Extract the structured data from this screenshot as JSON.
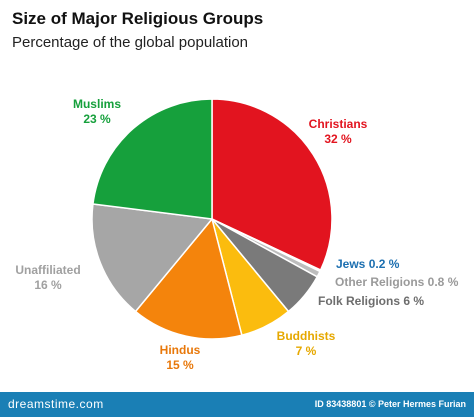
{
  "chart_data": {
    "type": "pie",
    "title": "Size of Major Religious Groups",
    "subtitle": "Percentage of the global population",
    "slices": [
      {
        "name": "Christians",
        "value": 32,
        "label": "32 %",
        "color": "#e2141f"
      },
      {
        "name": "Jews",
        "value": 0.2,
        "label": "0.2 %",
        "color": "#1c6fb0"
      },
      {
        "name": "Other Religions",
        "value": 0.8,
        "label": "0.8 %",
        "color": "#bdbdbd"
      },
      {
        "name": "Folk Religions",
        "value": 6,
        "label": "6 %",
        "color": "#7a7a7a"
      },
      {
        "name": "Buddhists",
        "value": 7,
        "label": "7 %",
        "color": "#fbbc0e"
      },
      {
        "name": "Hindus",
        "value": 15,
        "label": "15 %",
        "color": "#f4840c"
      },
      {
        "name": "Unaffiliated",
        "value": 16,
        "label": "16 %",
        "color": "#a6a6a6"
      },
      {
        "name": "Muslims",
        "value": 23,
        "label": "23 %",
        "color": "#16a03c"
      }
    ]
  },
  "footer": {
    "brand": "dreamstime.com",
    "credit": "ID 83438801 © Peter Hermes Furian"
  }
}
